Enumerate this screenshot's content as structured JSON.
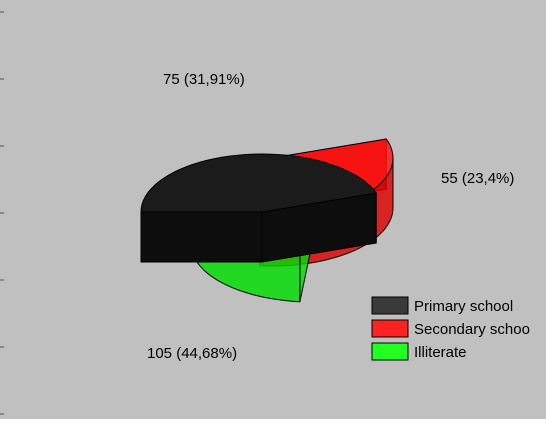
{
  "chart_data": {
    "type": "pie",
    "style": "3d-exploded",
    "title": "",
    "categories": [
      "Primary school",
      "Secondary school",
      "Illiterate"
    ],
    "values": [
      105,
      75,
      55
    ],
    "percent_labels": [
      "105 (44,68%)",
      "75 (31,91%)",
      "55 (23,4%)"
    ],
    "legend": {
      "position": "bottom-right",
      "entries": [
        "Primary school",
        "Secondary schoo",
        "Illiterate"
      ]
    },
    "colors": {
      "Primary school": "#1a1a1a",
      "Secondary school": "#ff0000",
      "Illiterate": "#00ff00",
      "background": "#c0c0c0"
    }
  }
}
